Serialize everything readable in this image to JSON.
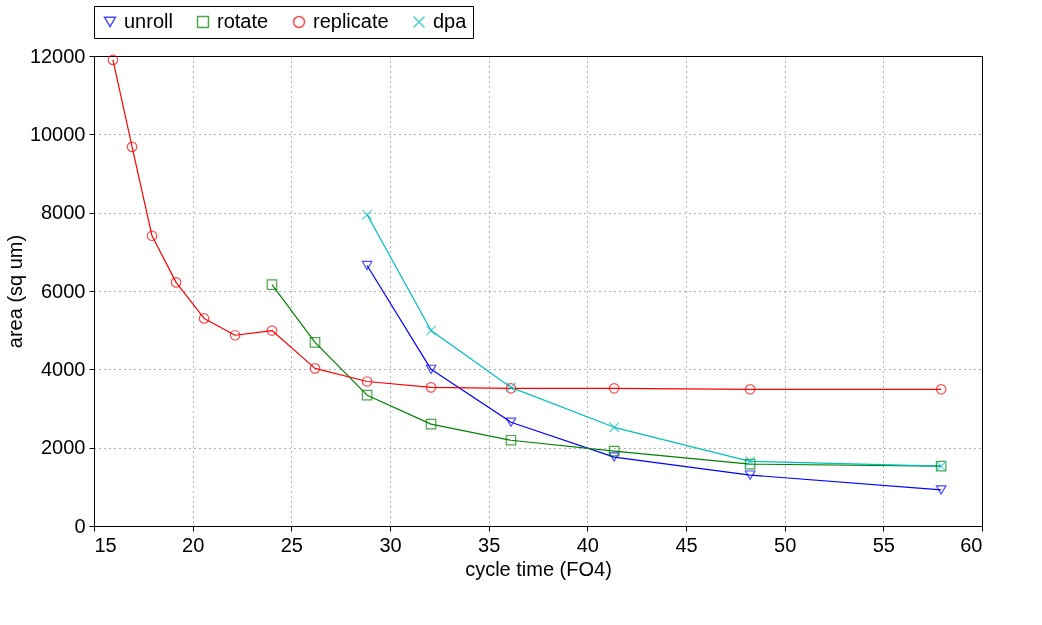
{
  "chart_data": {
    "type": "line",
    "xlabel": "cycle time (FO4)",
    "ylabel": "area (sq um)",
    "xlim": [
      15,
      60
    ],
    "xticks": [
      15,
      20,
      25,
      30,
      35,
      40,
      45,
      50,
      55,
      60
    ],
    "ylim": [
      0,
      12000
    ],
    "yticks": [
      0,
      2000,
      4000,
      6000,
      8000,
      10000,
      12000
    ],
    "grid": true,
    "legend": "top",
    "line_style": "solid",
    "series": [
      {
        "name": "unroll",
        "color": "#0000ff",
        "marker": "triangle",
        "x": [
          28.84,
          32.08,
          36.13,
          41.36,
          48.25,
          57.93
        ],
        "values": [
          6650,
          4000,
          2650,
          1760,
          1300,
          920
        ]
      },
      {
        "name": "rotate",
        "color": "#008000",
        "marker": "square",
        "x": [
          24.02,
          26.2,
          28.84,
          32.08,
          36.13,
          41.36,
          48.25,
          57.93
        ],
        "values": [
          6165,
          4690,
          3340,
          2600,
          2190,
          1910,
          1580,
          1530
        ]
      },
      {
        "name": "replicate",
        "color": "#ff0000",
        "marker": "circle",
        "x": [
          15.96,
          16.93,
          17.94,
          19.16,
          20.58,
          22.15,
          24.02,
          26.2,
          28.84,
          32.08,
          36.13,
          41.36,
          48.25,
          57.93
        ],
        "values": [
          11900,
          9680,
          7410,
          6220,
          5300,
          4870,
          4990,
          4025,
          3690,
          3540,
          3515,
          3515,
          3490,
          3490
        ]
      },
      {
        "name": "dpa",
        "color": "#00bfbf",
        "marker": "cross",
        "x": [
          28.84,
          32.08,
          36.13,
          41.36,
          48.25,
          57.93
        ],
        "values": [
          7950,
          4990,
          3540,
          2520,
          1650,
          1530
        ]
      }
    ]
  }
}
